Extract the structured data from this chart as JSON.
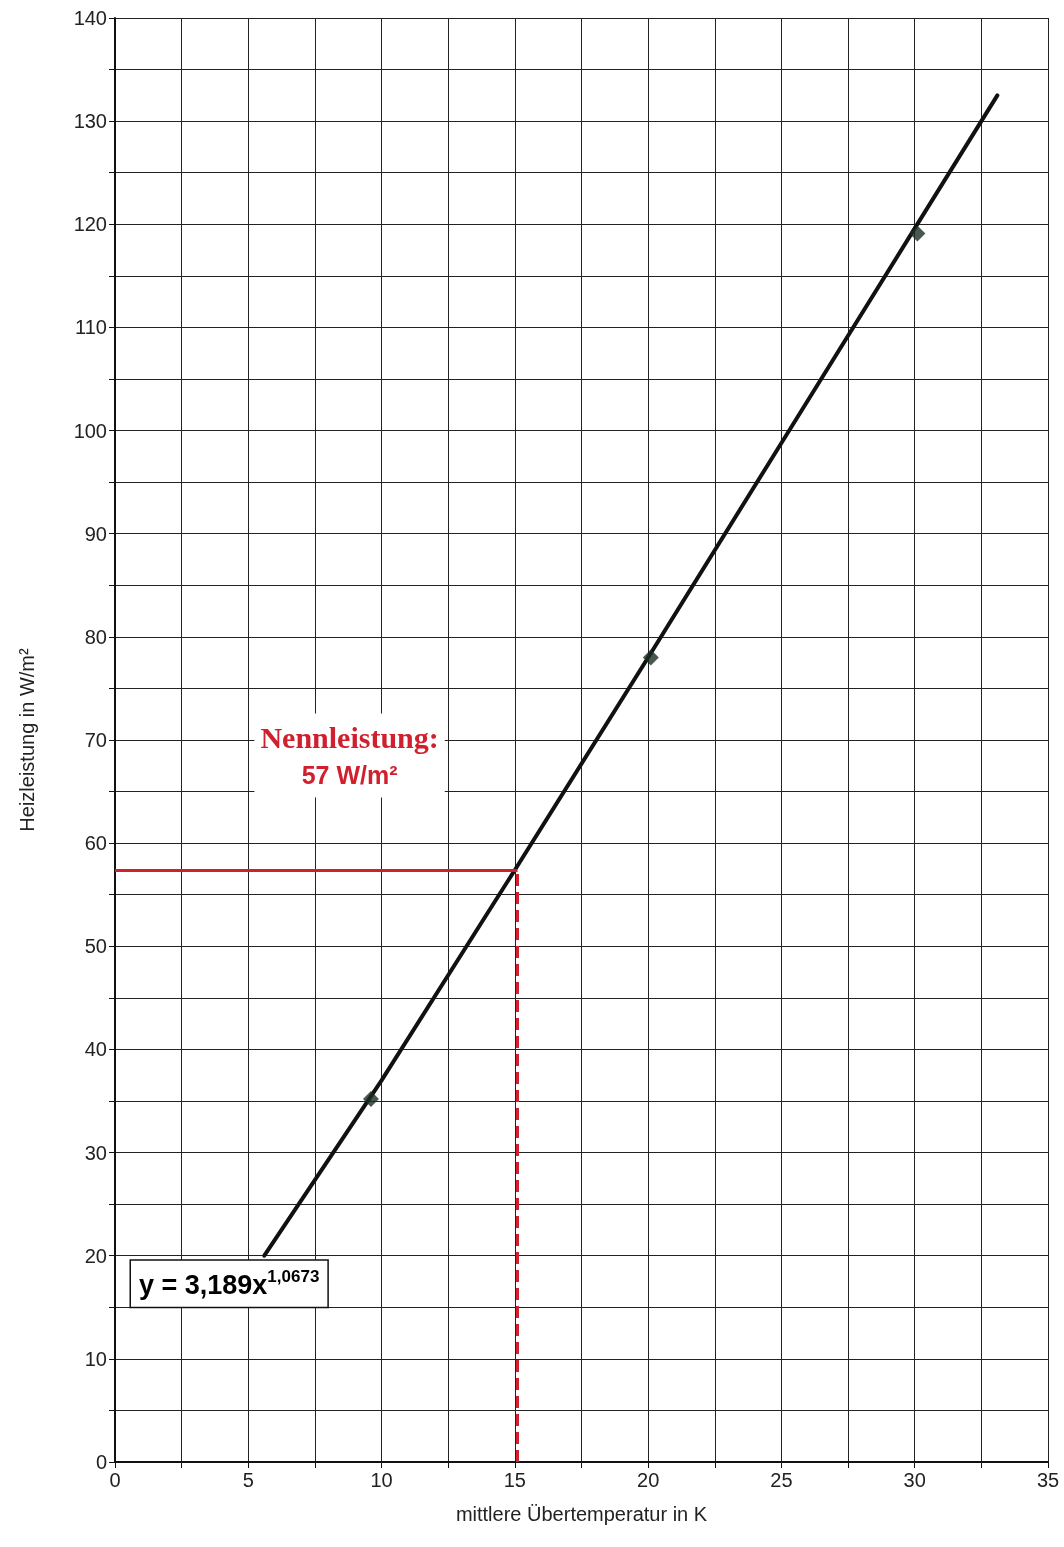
{
  "chart_data": {
    "type": "scatter",
    "xlabel": "mittlere Übertemperatur in K",
    "ylabel": "Heizleistung in W/m²",
    "series": [
      {
        "type": "line",
        "marker": "none",
        "color": "#111111",
        "x": [
          5.6,
          10,
          15,
          20,
          25,
          30,
          33.1
        ],
        "values": [
          20,
          37,
          57.4,
          78,
          98.8,
          119.6,
          132.5
        ]
      },
      {
        "color": "#1c2e22",
        "x": [
          9.6,
          20.1,
          30.1
        ],
        "values": [
          35.2,
          78,
          119.1
        ]
      }
    ],
    "marker": "diamond",
    "xlim": [
      0,
      35
    ],
    "xticks": [
      0,
      {
        "value": 2.5,
        "label": null
      },
      5,
      {
        "value": 7.5,
        "label": null
      },
      10,
      {
        "value": 12.5,
        "label": null
      },
      15,
      {
        "value": 17.5,
        "label": null
      },
      20,
      {
        "value": 22.5,
        "label": null
      },
      25,
      {
        "value": 27.5,
        "label": null
      },
      30,
      {
        "value": 32.5,
        "label": null
      },
      35
    ],
    "ylim": [
      0,
      140
    ],
    "yticks": [
      0,
      {
        "value": 5,
        "label": null
      },
      10,
      {
        "value": 15,
        "label": null
      },
      20,
      {
        "value": 25,
        "label": null
      },
      30,
      {
        "value": 35,
        "label": null
      },
      40,
      {
        "value": 45,
        "label": null
      },
      50,
      {
        "value": 55,
        "label": null
      },
      60,
      {
        "value": 65,
        "label": null
      },
      70,
      {
        "value": 75,
        "label": null
      },
      80,
      {
        "value": 85,
        "label": null
      },
      90,
      {
        "value": 95,
        "label": null
      },
      100,
      {
        "value": 105,
        "label": null
      },
      110,
      {
        "value": 115,
        "label": null
      },
      120,
      {
        "value": 125,
        "label": null
      },
      130,
      {
        "value": 135,
        "label": null
      },
      140
    ],
    "grid": true,
    "ref_lines": [
      {
        "axis": "y",
        "value": 57.4,
        "color": "#d0202e",
        "line_style": "solid"
      },
      {
        "axis": "x",
        "value": 15.1,
        "color": "#d0202e",
        "line_style": "dashed"
      }
    ],
    "annotations": [
      "Nennleistung:\n57 W/m²",
      "y = 3,189x$^{1,0673}$"
    ]
  }
}
